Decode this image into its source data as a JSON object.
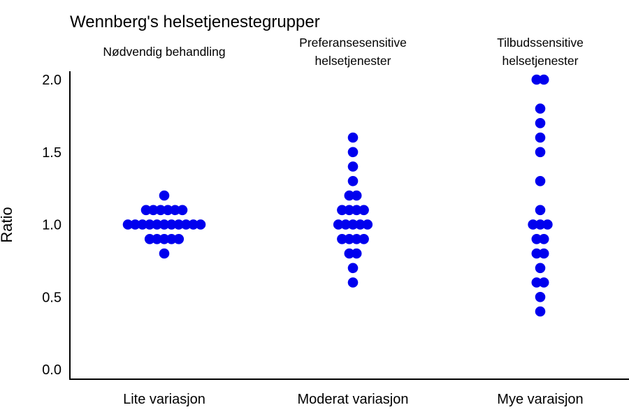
{
  "chart_data": {
    "type": "scatter",
    "title": "Wennberg's helsetjenestegrupper",
    "ylabel": "Ratio",
    "ylim": [
      0,
      2
    ],
    "yticks": [
      "0.0",
      "0.5",
      "1.0",
      "1.5",
      "2.0"
    ],
    "grid": false,
    "groups": [
      {
        "header": [
          "Nødvendig behandling"
        ],
        "category": "Lite variasjon",
        "points": [
          0.8,
          0.9,
          0.9,
          0.9,
          0.9,
          0.9,
          1.0,
          1.0,
          1.0,
          1.0,
          1.0,
          1.0,
          1.0,
          1.0,
          1.0,
          1.0,
          1.0,
          1.1,
          1.1,
          1.1,
          1.1,
          1.1,
          1.1,
          1.2
        ]
      },
      {
        "header": [
          "Preferansesensitive",
          "helsetjenester"
        ],
        "category": "Moderat variasjon",
        "points": [
          0.6,
          0.7,
          0.8,
          0.8,
          0.9,
          0.9,
          0.9,
          0.9,
          1.0,
          1.0,
          1.0,
          1.0,
          1.0,
          1.1,
          1.1,
          1.1,
          1.1,
          1.2,
          1.2,
          1.3,
          1.4,
          1.5,
          1.6
        ]
      },
      {
        "header": [
          "Tilbudssensitive",
          "helsetjenester"
        ],
        "category": "Mye varaisjon",
        "points": [
          0.4,
          0.5,
          0.6,
          0.6,
          0.7,
          0.8,
          0.8,
          0.9,
          0.9,
          1.0,
          1.0,
          1.0,
          1.1,
          1.3,
          1.5,
          1.6,
          1.7,
          1.8,
          2.0,
          2.0
        ]
      }
    ],
    "colors": {
      "points": "#0000ee",
      "axis": "#000000"
    }
  }
}
